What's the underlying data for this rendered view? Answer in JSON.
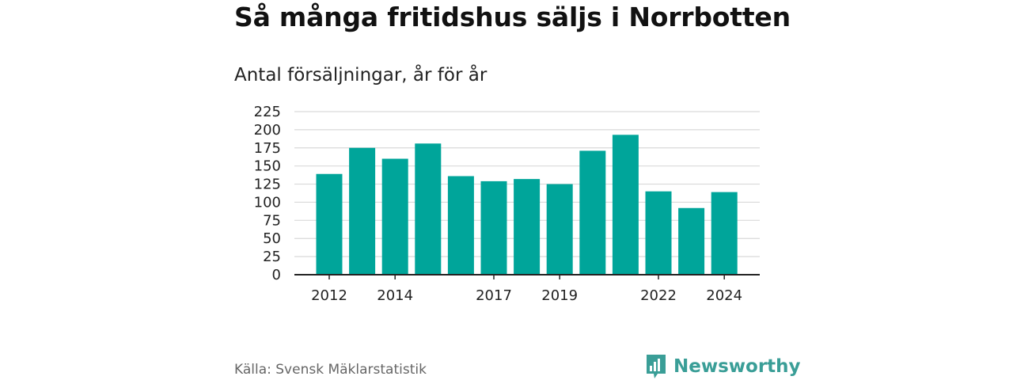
{
  "colors": {
    "bar": "#00a59a",
    "grid": "#d9d9d9",
    "axis": "#222222",
    "brand": "#3a9e97"
  },
  "brand": {
    "name": "Newsworthy",
    "icon": "bar-chart-speech-icon"
  },
  "source": "Källa: Svensk Mäklarstatistik",
  "chart_data": {
    "type": "bar",
    "title": "Så många fritidshus säljs i Norrbotten",
    "subtitle": "Antal försäljningar, år för år",
    "categories": [
      "2012",
      "2013",
      "2014",
      "2015",
      "2016",
      "2017",
      "2018",
      "2019",
      "2020",
      "2021",
      "2022",
      "2023",
      "2024"
    ],
    "values": [
      139,
      175,
      160,
      181,
      136,
      129,
      132,
      125,
      171,
      193,
      115,
      92,
      114
    ],
    "x_tick_labels": [
      "2012",
      "2014",
      "2017",
      "2019",
      "2022",
      "2024"
    ],
    "y_ticks": [
      0,
      25,
      50,
      75,
      100,
      125,
      150,
      175,
      200,
      225
    ],
    "ylim": [
      0,
      225
    ],
    "grid": true,
    "legend": "none"
  }
}
